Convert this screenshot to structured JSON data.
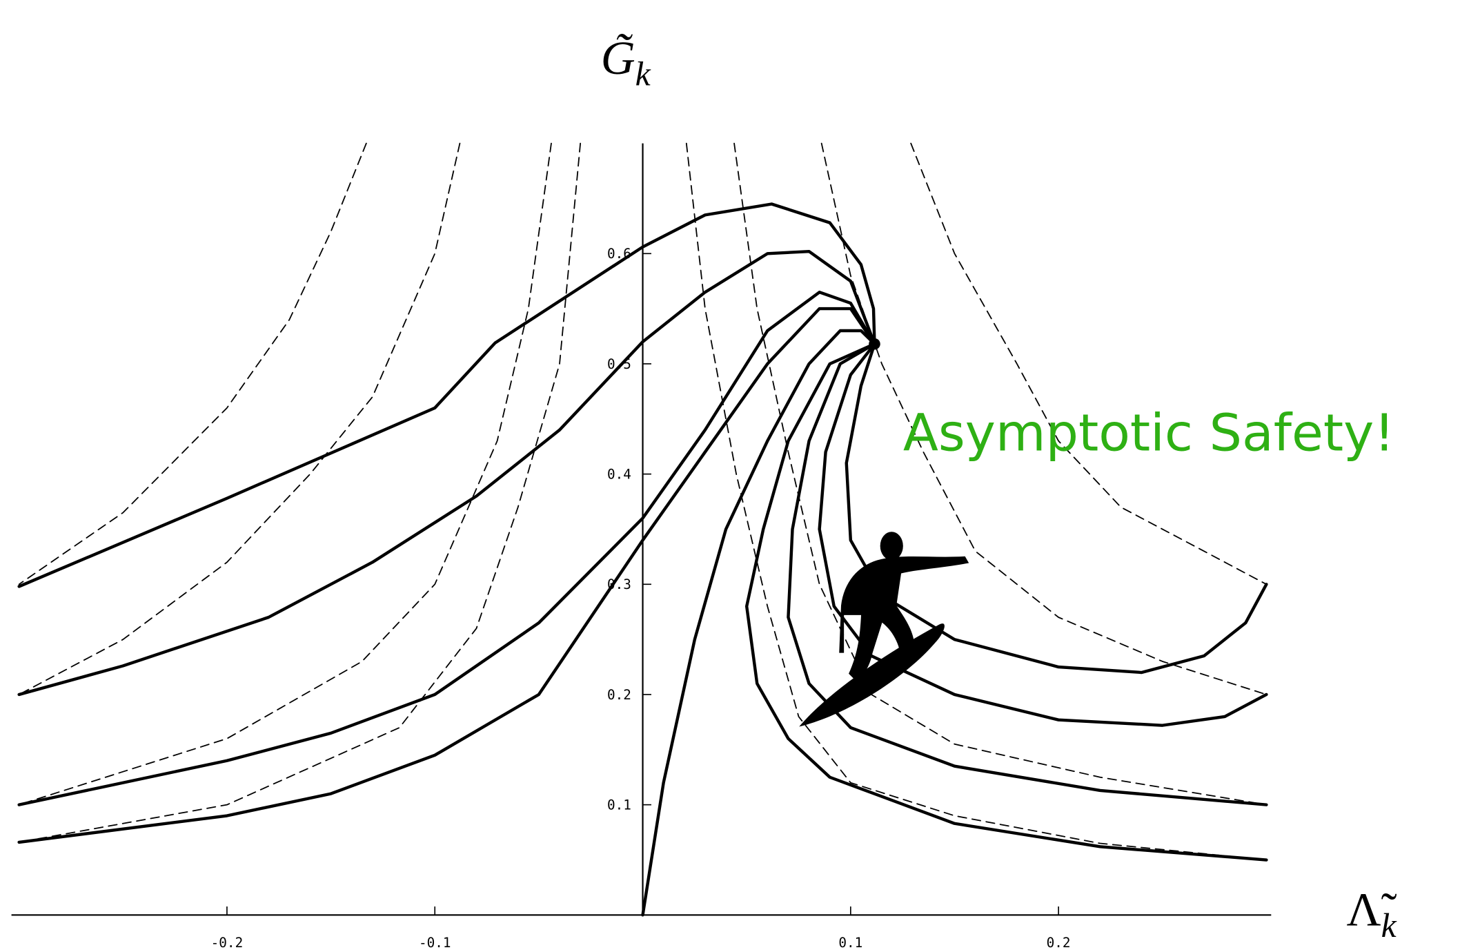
{
  "chart_data": {
    "type": "line",
    "ylabel": "G̃",
    "ylabel_sub": "k",
    "xlabel": "Λ̃",
    "xlabel_sub": "k",
    "annotation": "Asymptotic Safety!",
    "annotation_color": "#2eb014",
    "xlim": [
      -0.3,
      0.3
    ],
    "ylim": [
      0,
      0.7
    ],
    "xticks": [
      -0.2,
      -0.1,
      0.1,
      0.2
    ],
    "yticks": [
      0.1,
      0.2,
      0.3,
      0.4,
      0.5,
      0.6
    ],
    "series": [
      {
        "style": "solid",
        "color": "#000000",
        "x": [
          -0.3,
          -0.2,
          -0.1,
          -0.071,
          0,
          0.03,
          0.062,
          0.09,
          0.105,
          0.111,
          0.1115
        ],
        "y": [
          0.298,
          0.378,
          0.46,
          0.519,
          0.606,
          0.635,
          0.645,
          0.628,
          0.59,
          0.55,
          0.518
        ]
      },
      {
        "style": "solid",
        "color": "#000000",
        "x": [
          -0.3,
          -0.25,
          -0.18,
          -0.13,
          -0.08,
          -0.04,
          0,
          0.03,
          0.06,
          0.08,
          0.1,
          0.1115
        ],
        "y": [
          0.2,
          0.226,
          0.27,
          0.32,
          0.38,
          0.44,
          0.52,
          0.565,
          0.6,
          0.602,
          0.575,
          0.518
        ]
      },
      {
        "style": "solid",
        "color": "#000000",
        "x": [
          -0.3,
          -0.2,
          -0.15,
          -0.1,
          -0.05,
          0,
          0.03,
          0.06,
          0.085,
          0.1,
          0.1115
        ],
        "y": [
          0.1,
          0.14,
          0.165,
          0.2,
          0.265,
          0.36,
          0.44,
          0.53,
          0.565,
          0.555,
          0.518
        ]
      },
      {
        "style": "solid",
        "color": "#000000",
        "x": [
          -0.3,
          -0.2,
          -0.15,
          -0.1,
          -0.05,
          0,
          0.03,
          0.06,
          0.085,
          0.1,
          0.1115
        ],
        "y": [
          0.066,
          0.09,
          0.11,
          0.145,
          0.2,
          0.34,
          0.42,
          0.5,
          0.55,
          0.55,
          0.518
        ]
      },
      {
        "style": "solid",
        "color": "#000000",
        "x": [
          0,
          0.01,
          0.025,
          0.04,
          0.06,
          0.08,
          0.095,
          0.105,
          0.1115
        ],
        "y": [
          0,
          0.12,
          0.25,
          0.35,
          0.43,
          0.5,
          0.53,
          0.53,
          0.518
        ]
      },
      {
        "style": "solid",
        "color": "#000000",
        "x": [
          0.1115,
          0.09,
          0.07,
          0.058,
          0.05,
          0.055,
          0.07,
          0.09,
          0.15,
          0.22,
          0.3
        ],
        "y": [
          0.518,
          0.5,
          0.43,
          0.35,
          0.28,
          0.21,
          0.16,
          0.125,
          0.083,
          0.062,
          0.05
        ]
      },
      {
        "style": "solid",
        "color": "#000000",
        "x": [
          0.1115,
          0.095,
          0.08,
          0.072,
          0.07,
          0.08,
          0.1,
          0.15,
          0.22,
          0.3
        ],
        "y": [
          0.518,
          0.5,
          0.43,
          0.35,
          0.27,
          0.21,
          0.17,
          0.135,
          0.113,
          0.1
        ]
      },
      {
        "style": "solid",
        "color": "#000000",
        "x": [
          0.1115,
          0.1,
          0.088,
          0.085,
          0.092,
          0.11,
          0.15,
          0.2,
          0.25,
          0.28,
          0.3
        ],
        "y": [
          0.518,
          0.49,
          0.42,
          0.35,
          0.28,
          0.235,
          0.2,
          0.177,
          0.172,
          0.18,
          0.2
        ]
      },
      {
        "style": "solid",
        "color": "#000000",
        "x": [
          0.1115,
          0.105,
          0.098,
          0.1,
          0.115,
          0.15,
          0.2,
          0.24,
          0.27,
          0.29,
          0.3
        ],
        "y": [
          0.518,
          0.48,
          0.41,
          0.34,
          0.29,
          0.25,
          0.225,
          0.22,
          0.235,
          0.265,
          0.3
        ]
      },
      {
        "style": "dashed",
        "color": "#000000",
        "x": [
          -0.133,
          -0.15,
          -0.17,
          -0.2,
          -0.25,
          -0.3
        ],
        "y": [
          0.7,
          0.62,
          0.54,
          0.46,
          0.365,
          0.3
        ]
      },
      {
        "style": "dashed",
        "color": "#000000",
        "x": [
          -0.088,
          -0.1,
          -0.13,
          -0.16,
          -0.2,
          -0.25,
          -0.3
        ],
        "y": [
          0.7,
          0.6,
          0.47,
          0.4,
          0.32,
          0.25,
          0.2
        ]
      },
      {
        "style": "dashed",
        "color": "#000000",
        "x": [
          -0.044,
          -0.055,
          -0.07,
          -0.1,
          -0.135,
          -0.2,
          -0.3
        ],
        "y": [
          0.7,
          0.55,
          0.43,
          0.3,
          0.23,
          0.16,
          0.1
        ]
      },
      {
        "style": "dashed",
        "color": "#000000",
        "x": [
          -0.03,
          -0.04,
          -0.06,
          -0.08,
          -0.117,
          -0.2,
          -0.3
        ],
        "y": [
          0.7,
          0.5,
          0.37,
          0.26,
          0.17,
          0.1,
          0.066
        ]
      },
      {
        "style": "dashed",
        "color": "#000000",
        "x": [
          0.021,
          0.03,
          0.045,
          0.06,
          0.075,
          0.1,
          0.15,
          0.22,
          0.3
        ],
        "y": [
          0.7,
          0.55,
          0.4,
          0.28,
          0.18,
          0.12,
          0.09,
          0.065,
          0.05
        ]
      },
      {
        "style": "dashed",
        "color": "#000000",
        "x": [
          0.044,
          0.055,
          0.07,
          0.085,
          0.11,
          0.15,
          0.22,
          0.3
        ],
        "y": [
          0.7,
          0.55,
          0.42,
          0.3,
          0.2,
          0.155,
          0.125,
          0.1
        ]
      },
      {
        "style": "dashed",
        "color": "#000000",
        "x": [
          0.086,
          0.1,
          0.115,
          0.135,
          0.16,
          0.2,
          0.25,
          0.3
        ],
        "y": [
          0.7,
          0.58,
          0.5,
          0.42,
          0.33,
          0.27,
          0.23,
          0.2
        ]
      },
      {
        "style": "dashed",
        "color": "#000000",
        "x": [
          0.129,
          0.15,
          0.18,
          0.2,
          0.23,
          0.27,
          0.3
        ],
        "y": [
          0.7,
          0.6,
          0.5,
          0.43,
          0.37,
          0.33,
          0.3
        ]
      }
    ]
  }
}
